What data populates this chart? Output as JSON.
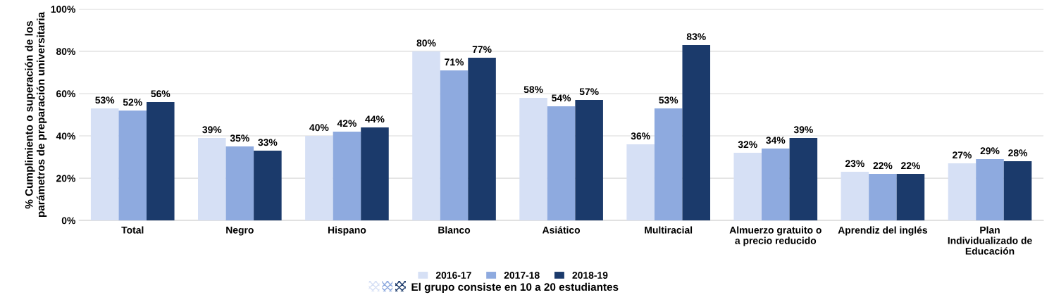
{
  "chart_data": {
    "type": "bar",
    "ylabel": "% Cumplimiento o superación de los\nparámetros de preparación universitaria",
    "categories": [
      "Total",
      "Negro",
      "Hispano",
      "Blanco",
      "Asiático",
      "Multiracial",
      "Almuerzo gratuito o\na precio reducido",
      "Aprendiz del inglés",
      "Plan\nIndividualizado de\nEducación"
    ],
    "series": [
      {
        "name": "2016-17",
        "color": "#d6e0f5",
        "values": [
          53,
          39,
          40,
          80,
          58,
          36,
          32,
          23,
          27
        ],
        "value_labels": [
          "53%",
          "39%",
          "40%",
          "80%",
          "58%",
          "36%",
          "32%",
          "23%",
          "27%"
        ]
      },
      {
        "name": "2017-18",
        "color": "#8eaadf",
        "values": [
          52,
          35,
          42,
          71,
          54,
          53,
          34,
          22,
          29
        ],
        "value_labels": [
          "52%",
          "35%",
          "42%",
          "71%",
          "54%",
          "53%",
          "34%",
          "22%",
          "29%"
        ]
      },
      {
        "name": "2018-19",
        "color": "#1b3a6b",
        "values": [
          56,
          33,
          44,
          77,
          57,
          83,
          39,
          22,
          28
        ],
        "value_labels": [
          "56%",
          "33%",
          "44%",
          "77%",
          "57%",
          "83%",
          "39%",
          "22%",
          "28%"
        ]
      }
    ],
    "ylim": [
      0,
      100
    ],
    "yticks": [
      {
        "value": 0,
        "label": "0%"
      },
      {
        "value": 20,
        "label": "20%"
      },
      {
        "value": 40,
        "label": "40%"
      },
      {
        "value": 60,
        "label": "60%"
      },
      {
        "value": 80,
        "label": "80%"
      },
      {
        "value": 100,
        "label": "100%"
      }
    ],
    "grid": "y",
    "legend": "bottom",
    "annotations": [
      "El grupo consiste en 10 a 20 estudiantes"
    ]
  }
}
